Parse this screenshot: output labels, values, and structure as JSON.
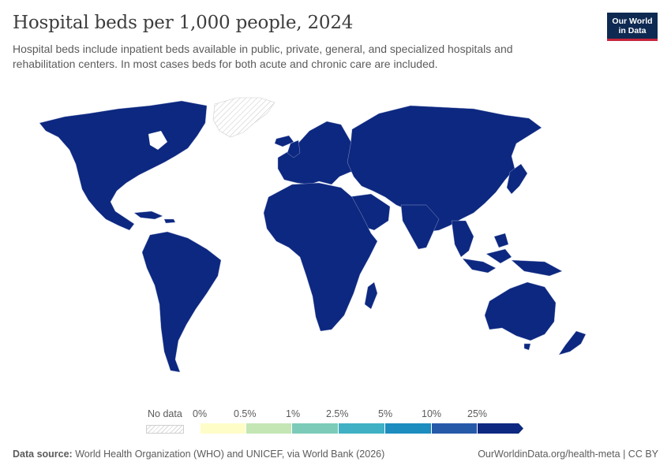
{
  "header": {
    "title": "Hospital beds per 1,000 people, 2024",
    "subtitle": "Hospital beds include inpatient beds available in public, private, general, and specialized hospitals and rehabilitation centers. In most cases beds for both acute and chronic care are included.",
    "logo_line1": "Our World",
    "logo_line2": "in Data"
  },
  "legend": {
    "no_data_label": "No data",
    "bins": [
      {
        "label": "0%",
        "color": "#fefdc8"
      },
      {
        "label": "0.5%",
        "color": "#c3e6b4"
      },
      {
        "label": "1%",
        "color": "#7ccbb8"
      },
      {
        "label": "2.5%",
        "color": "#40b0c4"
      },
      {
        "label": "5%",
        "color": "#1d8cbe"
      },
      {
        "label": "10%",
        "color": "#2659a8"
      },
      {
        "label": "25%",
        "color": "#0d2880"
      }
    ]
  },
  "map": {
    "fill_color": "#0d2880",
    "no_data_regions": [
      "Greenland"
    ]
  },
  "footer": {
    "source_label": "Data source:",
    "source_text": "World Health Organization (WHO) and UNICEF, via World Bank (2026)",
    "right_text": "OurWorldinData.org/health-meta | CC BY"
  }
}
